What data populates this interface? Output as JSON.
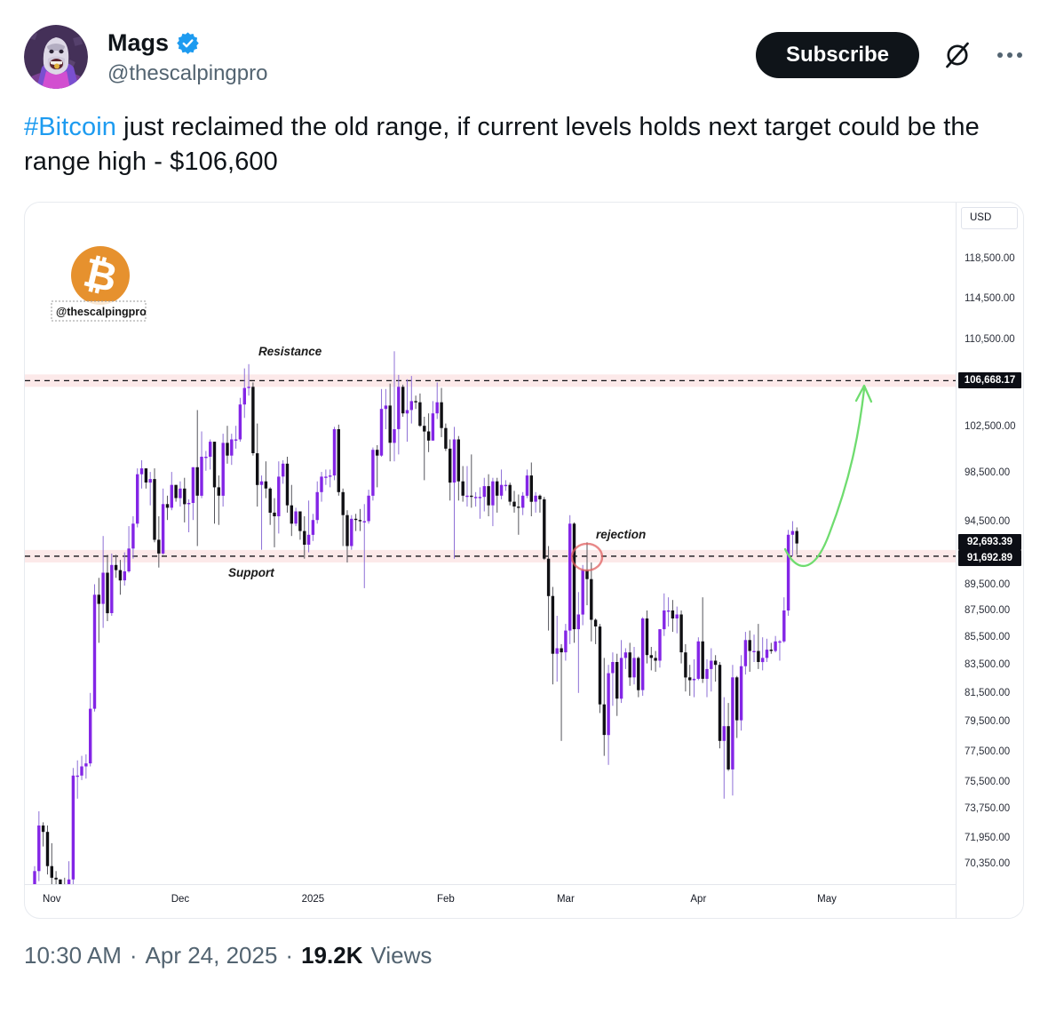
{
  "header": {
    "name": "Mags",
    "handle": "@thescalpingpro",
    "subscribe_label": "Subscribe"
  },
  "tweet": {
    "hashtag": "#Bitcoin",
    "text_after_hashtag": " just reclaimed the old range, if current levels holds next target could be the range high - $106,600"
  },
  "footer": {
    "time": "10:30 AM",
    "separator": "·",
    "date": "Apr 24, 2025",
    "views_count": "19.2K",
    "views_label": "Views"
  },
  "chart": {
    "currency_label": "USD",
    "watermark": "@thescalpingpro",
    "bitcoin_symbol": "₿",
    "annotations": {
      "resistance": "Resistance",
      "support": "Support",
      "rejection": "rejection"
    },
    "levels": {
      "resistance_price": 106668.17,
      "resistance_label": "106,668.17",
      "last_price": 92693.39,
      "last_price_label": "92,693.39",
      "support_price": 91692.89,
      "support_label": "91,692.89"
    },
    "y_ticks": [
      {
        "label": "118,500.00",
        "price": 118500
      },
      {
        "label": "114,500.00",
        "price": 114500
      },
      {
        "label": "110,500.00",
        "price": 110500
      },
      {
        "label": "102,500.00",
        "price": 102500
      },
      {
        "label": "98,500.00",
        "price": 98500
      },
      {
        "label": "94,500.00",
        "price": 94500
      },
      {
        "label": "89,500.00",
        "price": 89500
      },
      {
        "label": "87,500.00",
        "price": 87500
      },
      {
        "label": "85,500.00",
        "price": 85500
      },
      {
        "label": "83,500.00",
        "price": 83500
      },
      {
        "label": "81,500.00",
        "price": 81500
      },
      {
        "label": "79,500.00",
        "price": 79500
      },
      {
        "label": "77,500.00",
        "price": 77500
      },
      {
        "label": "75,500.00",
        "price": 75500
      },
      {
        "label": "73,750.00",
        "price": 73750
      },
      {
        "label": "71,950.00",
        "price": 71950
      },
      {
        "label": "70,350.00",
        "price": 70350
      }
    ],
    "x_ticks": [
      {
        "label": "Nov",
        "day": 4
      },
      {
        "label": "Dec",
        "day": 34
      },
      {
        "label": "2025",
        "day": 65
      },
      {
        "label": "Feb",
        "day": 96
      },
      {
        "label": "Mar",
        "day": 124
      },
      {
        "label": "Apr",
        "day": 155
      },
      {
        "label": "May",
        "day": 185
      }
    ],
    "colors": {
      "up": "#8325e6",
      "down": "#101014",
      "wick_up": "#8d6fd6",
      "wick_down": "#55555c",
      "band": "rgba(235,120,120,0.16)",
      "line": "#15151a",
      "arrow": "#6fdc6f",
      "circle": "#e06060",
      "bitcoin_orange": "#e6912e",
      "badge_bg": "#0c0e15",
      "badge_text": "#ffffff",
      "link_blue": "#1d9bf0"
    },
    "chart_data": {
      "type": "candlestick",
      "unit": "USD thousands",
      "interval": "1D",
      "start_date": "2024-10-28",
      "ohlc": [
        [
          68.0,
          70.2,
          67.7,
          69.9
        ],
        [
          69.9,
          73.6,
          69.3,
          72.7
        ],
        [
          72.7,
          72.9,
          71.4,
          72.3
        ],
        [
          72.3,
          72.7,
          69.7,
          70.2
        ],
        [
          70.2,
          71.6,
          68.8,
          69.5
        ],
        [
          69.5,
          69.9,
          68.6,
          69.4
        ],
        [
          69.4,
          69.4,
          67.5,
          68.7
        ],
        [
          68.7,
          69.5,
          66.8,
          67.9
        ],
        [
          67.9,
          70.5,
          67.5,
          69.4
        ],
        [
          69.4,
          76.4,
          69.0,
          75.9
        ],
        [
          75.9,
          76.9,
          74.4,
          75.9
        ],
        [
          75.9,
          77.2,
          75.6,
          76.5
        ],
        [
          76.5,
          77.3,
          75.7,
          76.7
        ],
        [
          76.7,
          81.5,
          76.5,
          80.4
        ],
        [
          80.4,
          89.5,
          80.2,
          88.7
        ],
        [
          88.7,
          90.0,
          85.1,
          88.0
        ],
        [
          88.0,
          93.3,
          86.2,
          90.4
        ],
        [
          90.4,
          91.8,
          86.7,
          87.3
        ],
        [
          87.3,
          91.9,
          87.1,
          91.0
        ],
        [
          91.0,
          91.8,
          90.0,
          90.6
        ],
        [
          90.6,
          91.4,
          88.7,
          89.8
        ],
        [
          89.8,
          92.0,
          89.4,
          90.5
        ],
        [
          90.5,
          94.1,
          90.4,
          92.3
        ],
        [
          92.3,
          94.9,
          91.5,
          94.3
        ],
        [
          94.3,
          98.9,
          94.0,
          98.4
        ],
        [
          98.4,
          99.6,
          97.2,
          98.9
        ],
        [
          98.9,
          98.9,
          97.2,
          97.7
        ],
        [
          97.7,
          98.6,
          95.8,
          98.0
        ],
        [
          98.0,
          98.9,
          92.8,
          93.0
        ],
        [
          93.0,
          94.9,
          90.8,
          91.9
        ],
        [
          91.9,
          97.2,
          91.8,
          95.9
        ],
        [
          95.9,
          96.6,
          94.6,
          95.6
        ],
        [
          95.6,
          98.6,
          95.4,
          97.5
        ],
        [
          97.5,
          97.5,
          96.1,
          96.4
        ],
        [
          96.4,
          97.8,
          95.7,
          97.2
        ],
        [
          97.2,
          98.1,
          94.4,
          95.9
        ],
        [
          95.9,
          96.3,
          93.6,
          96.0
        ],
        [
          96.0,
          99.0,
          94.6,
          99.0
        ],
        [
          99.0,
          104.0,
          92.5,
          96.6
        ],
        [
          96.6,
          102.1,
          96.4,
          99.9
        ],
        [
          99.9,
          100.4,
          98.7,
          99.9
        ],
        [
          99.9,
          101.4,
          98.8,
          101.2
        ],
        [
          101.2,
          101.2,
          94.3,
          97.3
        ],
        [
          97.3,
          98.3,
          94.2,
          96.6
        ],
        [
          96.6,
          101.9,
          95.7,
          101.1
        ],
        [
          101.1,
          102.6,
          99.3,
          100.0
        ],
        [
          100.0,
          101.9,
          99.2,
          101.4
        ],
        [
          101.4,
          102.6,
          100.6,
          101.4
        ],
        [
          101.4,
          105.1,
          101.2,
          104.5
        ],
        [
          104.5,
          107.8,
          103.3,
          106.0
        ],
        [
          106.0,
          108.2,
          105.3,
          106.1
        ],
        [
          106.1,
          106.5,
          100.0,
          100.2
        ],
        [
          100.2,
          102.8,
          95.7,
          97.5
        ],
        [
          97.5,
          98.3,
          92.2,
          97.8
        ],
        [
          97.8,
          99.5,
          96.4,
          97.2
        ],
        [
          97.2,
          97.3,
          94.2,
          95.2
        ],
        [
          95.2,
          96.4,
          92.4,
          94.9
        ],
        [
          94.9,
          99.5,
          93.5,
          98.2
        ],
        [
          98.2,
          99.6,
          97.6,
          99.3
        ],
        [
          99.3,
          99.9,
          95.2,
          95.8
        ],
        [
          95.8,
          97.5,
          93.3,
          94.3
        ],
        [
          94.3,
          95.6,
          94.1,
          95.3
        ],
        [
          95.3,
          95.3,
          93.0,
          93.7
        ],
        [
          93.7,
          94.9,
          91.5,
          92.6
        ],
        [
          92.6,
          96.2,
          92.0,
          93.4
        ],
        [
          93.4,
          95.1,
          92.9,
          94.6
        ],
        [
          94.6,
          97.8,
          94.3,
          96.9
        ],
        [
          96.9,
          98.6,
          96.1,
          98.2
        ],
        [
          98.2,
          98.8,
          97.5,
          98.2
        ],
        [
          98.2,
          98.8,
          97.3,
          98.3
        ],
        [
          98.3,
          102.5,
          97.9,
          102.3
        ],
        [
          102.3,
          102.7,
          96.6,
          96.9
        ],
        [
          96.9,
          97.2,
          92.5,
          95.0
        ],
        [
          95.0,
          95.4,
          91.2,
          92.5
        ],
        [
          92.5,
          95.0,
          92.2,
          94.7
        ],
        [
          94.7,
          95.1,
          93.7,
          94.6
        ],
        [
          94.6,
          95.5,
          93.7,
          94.5
        ],
        [
          94.5,
          95.9,
          89.2,
          94.5
        ],
        [
          94.5,
          97.1,
          94.3,
          96.6
        ],
        [
          96.6,
          100.7,
          96.2,
          100.5
        ],
        [
          100.5,
          100.9,
          97.3,
          100.0
        ],
        [
          100.0,
          105.9,
          99.9,
          104.1
        ],
        [
          104.1,
          105.9,
          102.3,
          104.4
        ],
        [
          104.4,
          106.4,
          99.5,
          101.1
        ],
        [
          101.1,
          109.4,
          99.5,
          102.3
        ],
        [
          102.3,
          107.2,
          100.1,
          106.1
        ],
        [
          106.1,
          106.3,
          103.4,
          103.7
        ],
        [
          103.7,
          106.8,
          101.2,
          104.0
        ],
        [
          104.0,
          107.1,
          102.8,
          104.8
        ],
        [
          104.8,
          105.3,
          104.1,
          104.7
        ],
        [
          104.7,
          105.5,
          102.5,
          102.6
        ],
        [
          102.6,
          103.4,
          97.9,
          102.1
        ],
        [
          102.1,
          103.7,
          100.3,
          101.3
        ],
        [
          101.3,
          104.8,
          101.3,
          103.7
        ],
        [
          103.7,
          106.5,
          103.2,
          104.7
        ],
        [
          104.7,
          106.0,
          101.6,
          102.4
        ],
        [
          102.4,
          102.8,
          100.4,
          100.6
        ],
        [
          100.6,
          101.4,
          96.2,
          97.7
        ],
        [
          97.7,
          102.5,
          91.5,
          101.4
        ],
        [
          101.4,
          101.7,
          96.2,
          97.8
        ],
        [
          97.8,
          99.1,
          96.1,
          96.6
        ],
        [
          96.6,
          99.1,
          95.7,
          96.6
        ],
        [
          96.6,
          100.1,
          95.6,
          96.5
        ],
        [
          96.5,
          96.9,
          95.7,
          96.5
        ],
        [
          96.5,
          97.3,
          94.7,
          96.5
        ],
        [
          96.5,
          98.1,
          95.3,
          97.4
        ],
        [
          97.4,
          98.4,
          94.9,
          95.8
        ],
        [
          95.8,
          98.1,
          94.1,
          97.8
        ],
        [
          97.8,
          98.1,
          95.2,
          96.6
        ],
        [
          96.6,
          98.8,
          96.3,
          97.5
        ],
        [
          97.5,
          97.9,
          97.0,
          97.5
        ],
        [
          97.5,
          97.7,
          95.8,
          96.1
        ],
        [
          96.1,
          97.0,
          95.2,
          95.7
        ],
        [
          95.7,
          96.7,
          93.4,
          95.6
        ],
        [
          95.6,
          96.9,
          95.0,
          96.6
        ],
        [
          96.6,
          98.8,
          96.4,
          98.3
        ],
        [
          98.3,
          99.4,
          94.9,
          96.1
        ],
        [
          96.1,
          96.9,
          95.2,
          96.6
        ],
        [
          96.6,
          96.7,
          95.2,
          96.3
        ],
        [
          96.3,
          96.5,
          91.4,
          91.5
        ],
        [
          91.5,
          92.5,
          86.0,
          88.6
        ],
        [
          88.6,
          89.3,
          82.1,
          84.3
        ],
        [
          84.3,
          87.1,
          82.3,
          84.7
        ],
        [
          84.7,
          85.0,
          78.2,
          84.4
        ],
        [
          84.4,
          86.5,
          83.8,
          86.0
        ],
        [
          86.0,
          95.0,
          85.0,
          94.3
        ],
        [
          94.3,
          94.4,
          85.1,
          86.1
        ],
        [
          86.1,
          88.9,
          81.5,
          87.2
        ],
        [
          87.2,
          91.0,
          86.4,
          90.6
        ],
        [
          90.6,
          92.8,
          87.9,
          89.9
        ],
        [
          89.9,
          91.2,
          85.2,
          86.8
        ],
        [
          86.8,
          86.9,
          85.0,
          86.3
        ],
        [
          86.3,
          86.5,
          80.1,
          80.7
        ],
        [
          80.7,
          84.0,
          77.2,
          78.6
        ],
        [
          78.6,
          83.5,
          76.6,
          82.9
        ],
        [
          82.9,
          84.4,
          80.6,
          83.7
        ],
        [
          83.7,
          84.3,
          79.9,
          81.1
        ],
        [
          81.1,
          85.3,
          80.8,
          84.0
        ],
        [
          84.0,
          84.7,
          83.2,
          84.4
        ],
        [
          84.4,
          85.1,
          82.0,
          82.6
        ],
        [
          82.6,
          84.8,
          82.1,
          84.0
        ],
        [
          84.0,
          84.1,
          81.2,
          81.7
        ],
        [
          81.7,
          87.0,
          81.3,
          86.9
        ],
        [
          86.9,
          87.5,
          83.6,
          84.2
        ],
        [
          84.2,
          84.8,
          83.1,
          84.0
        ],
        [
          84.0,
          84.5,
          83.0,
          83.8
        ],
        [
          83.8,
          86.1,
          83.3,
          86.1
        ],
        [
          86.1,
          88.8,
          85.6,
          87.5
        ],
        [
          87.5,
          88.5,
          86.3,
          87.5
        ],
        [
          87.5,
          88.3,
          85.9,
          86.9
        ],
        [
          86.9,
          87.8,
          85.8,
          87.2
        ],
        [
          87.2,
          87.5,
          83.6,
          84.4
        ],
        [
          84.4,
          85.0,
          81.6,
          82.6
        ],
        [
          82.6,
          83.5,
          81.3,
          82.4
        ],
        [
          82.4,
          83.9,
          81.2,
          82.5
        ],
        [
          82.5,
          85.5,
          82.4,
          85.2
        ],
        [
          85.2,
          88.5,
          82.2,
          82.5
        ],
        [
          82.5,
          83.9,
          81.2,
          83.2
        ],
        [
          83.2,
          84.7,
          81.6,
          83.8
        ],
        [
          83.8,
          84.2,
          82.3,
          83.5
        ],
        [
          83.5,
          83.7,
          77.7,
          78.2
        ],
        [
          78.2,
          81.2,
          74.4,
          79.2
        ],
        [
          79.2,
          80.8,
          76.2,
          76.3
        ],
        [
          76.3,
          83.5,
          74.6,
          82.6
        ],
        [
          82.6,
          82.7,
          78.4,
          79.6
        ],
        [
          79.6,
          84.2,
          78.9,
          83.4
        ],
        [
          83.4,
          85.9,
          82.8,
          85.3
        ],
        [
          85.3,
          86.0,
          83.0,
          84.5
        ],
        [
          84.5,
          85.7,
          83.7,
          84.5
        ],
        [
          84.5,
          86.5,
          83.2,
          83.7
        ],
        [
          83.7,
          85.5,
          83.1,
          84.0
        ],
        [
          84.0,
          85.4,
          83.7,
          84.6
        ],
        [
          84.6,
          85.1,
          84.3,
          84.5
        ],
        [
          84.5,
          85.6,
          84.4,
          85.2
        ],
        [
          85.2,
          85.3,
          83.8,
          85.2
        ],
        [
          85.2,
          88.5,
          85.1,
          87.5
        ],
        [
          87.5,
          93.8,
          87.1,
          93.4
        ],
        [
          93.4,
          94.5,
          91.7,
          93.7
        ],
        [
          93.7,
          94.0,
          91.8,
          92.7
        ]
      ]
    }
  }
}
